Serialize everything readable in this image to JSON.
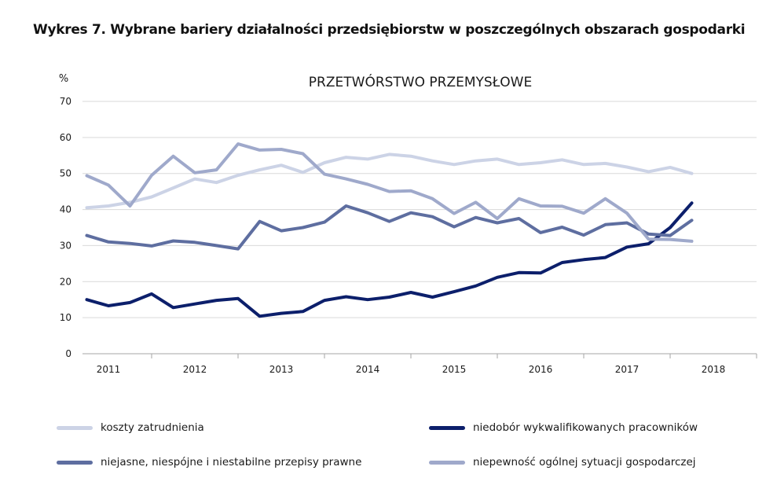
{
  "figure_title": "Wykres 7. Wybrane bariery działalności przedsiębiorstw w poszczególnych obszarach gospodarki",
  "chart_data": {
    "type": "line",
    "title": "PRZETWÓRSTWO PRZEMYSŁOWE",
    "ylabel": "%",
    "xlabel": "",
    "ylim": [
      0,
      70
    ],
    "yticks": [
      0,
      10,
      20,
      30,
      40,
      50,
      60,
      70
    ],
    "xlim": [
      2010.7,
      2018.5
    ],
    "xticks": [
      2011,
      2012,
      2013,
      2014,
      2015,
      2016,
      2017,
      2018
    ],
    "xtick_labels": [
      "2011",
      "2012",
      "2013",
      "2014",
      "2015",
      "2016",
      "2017",
      "2018"
    ],
    "grid": "horizontal",
    "legend_position": "bottom",
    "x": [
      2010.75,
      2011.0,
      2011.25,
      2011.5,
      2011.75,
      2012.0,
      2012.25,
      2012.5,
      2012.75,
      2013.0,
      2013.25,
      2013.5,
      2013.75,
      2014.0,
      2014.25,
      2014.5,
      2014.75,
      2015.0,
      2015.25,
      2015.5,
      2015.75,
      2016.0,
      2016.25,
      2016.5,
      2016.75,
      2017.0,
      2017.25,
      2017.5,
      2017.75
    ],
    "series": [
      {
        "name": "koszty zatrudnienia",
        "color": "#ccd3e6",
        "values": [
          40.5,
          41.0,
          42.0,
          43.5,
          46.0,
          48.5,
          47.5,
          49.5,
          51.0,
          52.3,
          50.3,
          53.0,
          54.5,
          54.0,
          55.3,
          54.8,
          53.5,
          52.5,
          53.5,
          54.0,
          52.5,
          53.0,
          53.8,
          52.5,
          52.8,
          51.8,
          50.5,
          51.7,
          50.0
        ]
      },
      {
        "name": "niedobór wykwalifikowanych pracowników",
        "color": "#0c1f6b",
        "values": [
          15.0,
          13.3,
          14.2,
          16.6,
          12.8,
          13.8,
          14.8,
          15.3,
          10.4,
          11.2,
          11.7,
          14.8,
          15.8,
          15.0,
          15.7,
          17.0,
          15.7,
          17.2,
          18.8,
          21.2,
          22.5,
          22.4,
          25.3,
          26.1,
          26.7,
          29.6,
          30.5,
          35.0,
          41.8
        ]
      },
      {
        "name": "niejasne, niespójne i niestabilne przepisy prawne",
        "color": "#5e6ea0",
        "values": [
          32.8,
          31.0,
          30.6,
          29.9,
          31.3,
          30.9,
          30.0,
          29.1,
          36.7,
          34.1,
          35.0,
          36.5,
          41.0,
          39.1,
          36.7,
          39.1,
          38.0,
          35.2,
          37.8,
          36.3,
          37.5,
          33.6,
          35.1,
          32.9,
          35.8,
          36.3,
          33.2,
          32.8,
          37.0
        ]
      },
      {
        "name": "niepewność ogólnej sytuacji gospodarczej",
        "color": "#9fa9cb",
        "values": [
          49.4,
          46.8,
          41.0,
          49.5,
          54.8,
          50.2,
          51.0,
          58.2,
          56.5,
          56.7,
          55.5,
          49.8,
          48.5,
          47.0,
          45.0,
          45.2,
          43.0,
          38.9,
          42.0,
          37.5,
          43.0,
          41.0,
          40.9,
          39.0,
          43.0,
          39.0,
          31.8,
          31.7,
          31.2
        ]
      }
    ]
  }
}
